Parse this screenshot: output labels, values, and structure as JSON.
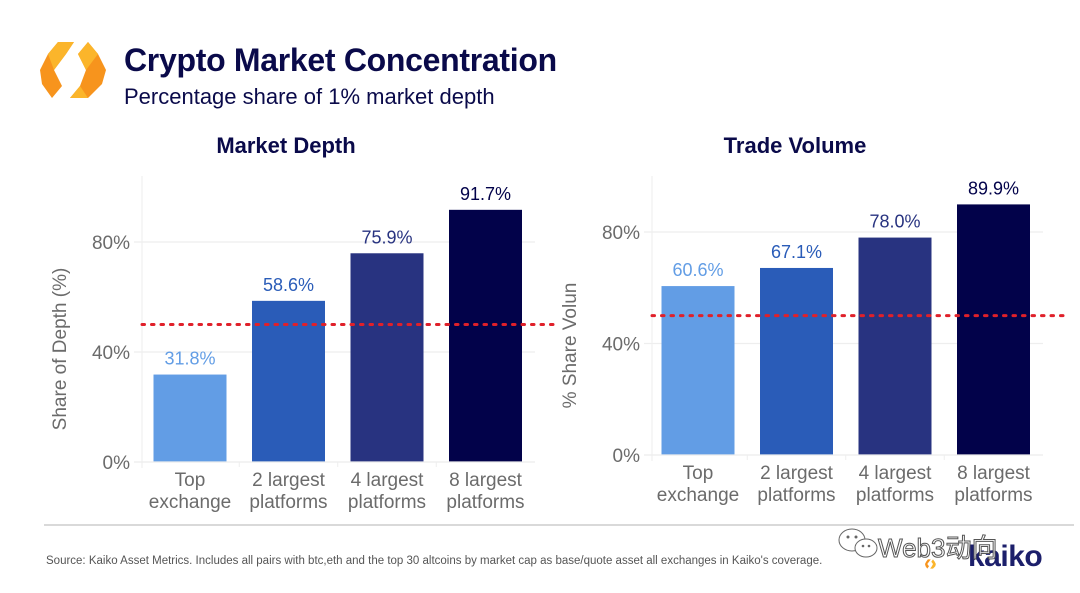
{
  "header": {
    "title": "Crypto Market Concentration",
    "subtitle": "Percentage share of 1% market depth",
    "logo_icon": "kaiko-hexagon-logo-icon"
  },
  "colors": {
    "title": "#0a0a4a",
    "bar_1": "#629DE5",
    "bar_2": "#2A5CB8",
    "bar_3": "#283380",
    "bar_4": "#02024A",
    "reference_line": "#e0202a",
    "logo_orange": "#f7941d",
    "logo_yellow": "#fbb52b"
  },
  "chart_data": [
    {
      "type": "bar",
      "title": "Market Depth",
      "xlabel": "",
      "ylabel": "Share of Depth (%)",
      "categories": [
        "Top exchange",
        "2 largest platforms",
        "4 largest platforms",
        "8 largest platforms"
      ],
      "category_lines": [
        [
          "Top",
          "exchange"
        ],
        [
          "2 largest",
          "platforms"
        ],
        [
          "4 largest",
          "platforms"
        ],
        [
          "8 largest",
          "platforms"
        ]
      ],
      "values": [
        31.8,
        58.6,
        75.9,
        91.7
      ],
      "data_labels": [
        "31.8%",
        "58.6%",
        "75.9%",
        "91.7%"
      ],
      "yticks": [
        0,
        40,
        80
      ],
      "ytick_labels": [
        "0%",
        "40%",
        "80%"
      ],
      "ylim": [
        0,
        100
      ],
      "reference_line": {
        "value": 50,
        "style": "dotted",
        "color": "#e0202a"
      },
      "grid": true
    },
    {
      "type": "bar",
      "title": "Trade Volume",
      "xlabel": "",
      "ylabel": "% Share Volun",
      "categories": [
        "Top exchange",
        "2 largest platforms",
        "4 largest platforms",
        "8 largest platforms"
      ],
      "category_lines": [
        [
          "Top",
          "exchange"
        ],
        [
          "2 largest",
          "platforms"
        ],
        [
          "4 largest",
          "platforms"
        ],
        [
          "8 largest",
          "platforms"
        ]
      ],
      "values": [
        60.6,
        67.1,
        78.0,
        89.9
      ],
      "data_labels": [
        "60.6%",
        "67.1%",
        "78.0%",
        "89.9%"
      ],
      "yticks": [
        0,
        40,
        80
      ],
      "ytick_labels": [
        "0%",
        "40%",
        "80%"
      ],
      "ylim": [
        0,
        100
      ],
      "reference_line": {
        "value": 50,
        "style": "dotted",
        "color": "#e0202a"
      },
      "grid": true
    }
  ],
  "footer": {
    "source": "Source: Kaiko Asset Metrics. Includes all pairs with btc,eth and the  top 30 altcoins by market cap as base/quote asset all exchanges in Kaiko's coverage.",
    "brand": "kaiko",
    "watermark": "Web3动向",
    "watermark_icon": "wechat-icon"
  }
}
